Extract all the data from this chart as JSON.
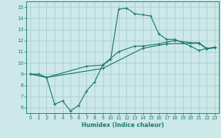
{
  "xlabel": "Humidex (Indice chaleur)",
  "xlim": [
    -0.5,
    23.5
  ],
  "ylim": [
    5.5,
    15.5
  ],
  "xticks": [
    0,
    1,
    2,
    3,
    4,
    5,
    6,
    7,
    8,
    9,
    10,
    11,
    12,
    13,
    14,
    15,
    16,
    17,
    18,
    19,
    20,
    21,
    22,
    23
  ],
  "yticks": [
    6,
    7,
    8,
    9,
    10,
    11,
    12,
    13,
    14,
    15
  ],
  "background_color": "#cce8e8",
  "grid_color": "#aacccc",
  "line_color": "#1a7a6e",
  "line1_x": [
    0,
    1,
    2,
    3,
    4,
    5,
    6,
    7,
    8,
    9,
    10,
    11,
    12,
    13,
    14,
    15,
    16,
    17,
    18,
    19,
    20,
    21,
    22,
    23
  ],
  "line1_y": [
    9.0,
    9.0,
    8.7,
    6.3,
    6.6,
    5.7,
    6.2,
    7.5,
    8.3,
    9.8,
    10.3,
    14.8,
    14.9,
    14.4,
    14.3,
    14.2,
    12.6,
    12.1,
    12.1,
    11.8,
    11.5,
    11.1,
    11.3,
    11.4
  ],
  "line2_x": [
    0,
    2,
    7,
    9,
    11,
    13,
    14,
    16,
    17,
    18,
    20,
    21,
    22,
    23
  ],
  "line2_y": [
    9.0,
    8.7,
    9.7,
    9.8,
    11.0,
    11.5,
    11.5,
    11.7,
    11.85,
    12.0,
    11.8,
    11.8,
    11.3,
    11.35
  ],
  "line3_x": [
    0,
    2,
    9,
    14,
    17,
    21,
    22,
    23
  ],
  "line3_y": [
    9.0,
    8.7,
    9.5,
    11.3,
    11.7,
    11.75,
    11.25,
    11.35
  ]
}
